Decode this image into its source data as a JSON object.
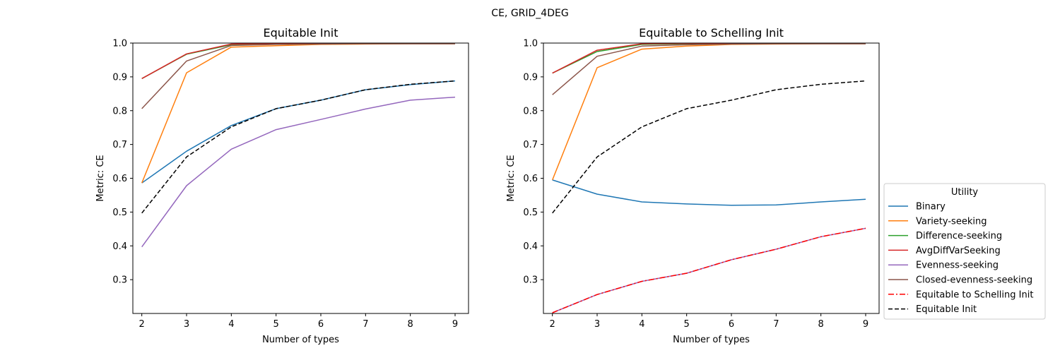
{
  "figure": {
    "suptitle": "CE, GRID_4DEG"
  },
  "legend": {
    "title": "Utility",
    "placement": "right",
    "entries": [
      {
        "name": "Binary",
        "color": "#1f77b4",
        "dash": "solid"
      },
      {
        "name": "Variety-seeking",
        "color": "#ff7f0e",
        "dash": "solid"
      },
      {
        "name": "Difference-seeking",
        "color": "#2ca02c",
        "dash": "solid"
      },
      {
        "name": "AvgDiffVarSeeking",
        "color": "#d62728",
        "dash": "solid"
      },
      {
        "name": "Evenness-seeking",
        "color": "#9467bd",
        "dash": "solid"
      },
      {
        "name": "Closed-evenness-seeking",
        "color": "#8c564b",
        "dash": "solid"
      },
      {
        "name": "Equitable to Schelling Init",
        "color": "#ff0000",
        "dash": "dashdot"
      },
      {
        "name": "Equitable Init",
        "color": "#000000",
        "dash": "dashed"
      }
    ]
  },
  "chart_data": [
    {
      "type": "line",
      "title": "Equitable Init",
      "xlabel": "Number of types",
      "ylabel": "Metric: CE",
      "x": [
        2,
        3,
        4,
        5,
        6,
        7,
        8,
        9
      ],
      "xlim": [
        1.8,
        9.3
      ],
      "ylim": [
        0.2,
        1.0
      ],
      "xticks": [
        "2",
        "3",
        "4",
        "5",
        "6",
        "7",
        "8",
        "9"
      ],
      "yticks": [
        "0.3",
        "0.4",
        "0.5",
        "0.6",
        "0.7",
        "0.8",
        "0.9",
        "1.0"
      ],
      "series": [
        {
          "name": "Binary",
          "color": "#1f77b4",
          "dash": "solid",
          "values": [
            0.586,
            0.68,
            0.756,
            0.806,
            0.831,
            0.862,
            0.877,
            0.888
          ]
        },
        {
          "name": "Variety-seeking",
          "color": "#ff7f0e",
          "dash": "solid",
          "values": [
            0.586,
            0.912,
            0.988,
            0.992,
            0.996,
            0.997,
            0.998,
            0.998
          ]
        },
        {
          "name": "Difference-seeking",
          "color": "#2ca02c",
          "dash": "solid",
          "values": [
            0.895,
            0.967,
            0.995,
            0.998,
            0.999,
            0.999,
            0.999,
            0.999
          ]
        },
        {
          "name": "AvgDiffVarSeeking",
          "color": "#d62728",
          "dash": "solid",
          "values": [
            0.895,
            0.968,
            0.997,
            0.999,
            0.999,
            0.999,
            0.999,
            0.999
          ]
        },
        {
          "name": "Evenness-seeking",
          "color": "#9467bd",
          "dash": "solid",
          "values": [
            0.397,
            0.578,
            0.686,
            0.744,
            0.774,
            0.805,
            0.831,
            0.84
          ]
        },
        {
          "name": "Closed-evenness-seeking",
          "color": "#8c564b",
          "dash": "solid",
          "values": [
            0.806,
            0.947,
            0.993,
            0.996,
            0.997,
            0.998,
            0.998,
            0.998
          ]
        },
        {
          "name": "Equitable Init",
          "color": "#000000",
          "dash": "dashed",
          "values": [
            0.497,
            0.663,
            0.752,
            0.806,
            0.831,
            0.862,
            0.878,
            0.888
          ]
        }
      ]
    },
    {
      "type": "line",
      "title": "Equitable to Schelling Init",
      "xlabel": "Number of types",
      "ylabel": "Metric: CE",
      "x": [
        2,
        3,
        4,
        5,
        6,
        7,
        8,
        9
      ],
      "xlim": [
        1.8,
        9.3
      ],
      "ylim": [
        0.2,
        1.0
      ],
      "xticks": [
        "2",
        "3",
        "4",
        "5",
        "6",
        "7",
        "8",
        "9"
      ],
      "yticks": [
        "0.3",
        "0.4",
        "0.5",
        "0.6",
        "0.7",
        "0.8",
        "0.9",
        "1.0"
      ],
      "series": [
        {
          "name": "Binary",
          "color": "#1f77b4",
          "dash": "solid",
          "values": [
            0.595,
            0.553,
            0.53,
            0.524,
            0.52,
            0.521,
            0.53,
            0.538
          ]
        },
        {
          "name": "Variety-seeking",
          "color": "#ff7f0e",
          "dash": "solid",
          "values": [
            0.595,
            0.927,
            0.982,
            0.991,
            0.996,
            0.997,
            0.998,
            0.998
          ]
        },
        {
          "name": "Difference-seeking",
          "color": "#2ca02c",
          "dash": "solid",
          "values": [
            0.911,
            0.975,
            0.996,
            0.998,
            0.999,
            0.999,
            0.999,
            0.999
          ]
        },
        {
          "name": "AvgDiffVarSeeking",
          "color": "#d62728",
          "dash": "solid",
          "values": [
            0.911,
            0.979,
            0.998,
            0.999,
            0.999,
            0.999,
            0.999,
            0.999
          ]
        },
        {
          "name": "Evenness-seeking",
          "color": "#9467bd",
          "dash": "solid",
          "values": [
            0.202,
            0.256,
            0.295,
            0.319,
            0.359,
            0.39,
            0.427,
            0.452
          ]
        },
        {
          "name": "Closed-evenness-seeking",
          "color": "#8c564b",
          "dash": "solid",
          "values": [
            0.847,
            0.961,
            0.991,
            0.995,
            0.997,
            0.998,
            0.998,
            0.998
          ]
        },
        {
          "name": "Equitable to Schelling Init",
          "color": "#ff0000",
          "dash": "dashdot",
          "values": [
            0.202,
            0.256,
            0.295,
            0.319,
            0.359,
            0.39,
            0.427,
            0.452
          ]
        },
        {
          "name": "Equitable Init",
          "color": "#000000",
          "dash": "dashed",
          "values": [
            0.497,
            0.663,
            0.752,
            0.806,
            0.831,
            0.862,
            0.878,
            0.888
          ]
        }
      ]
    }
  ]
}
